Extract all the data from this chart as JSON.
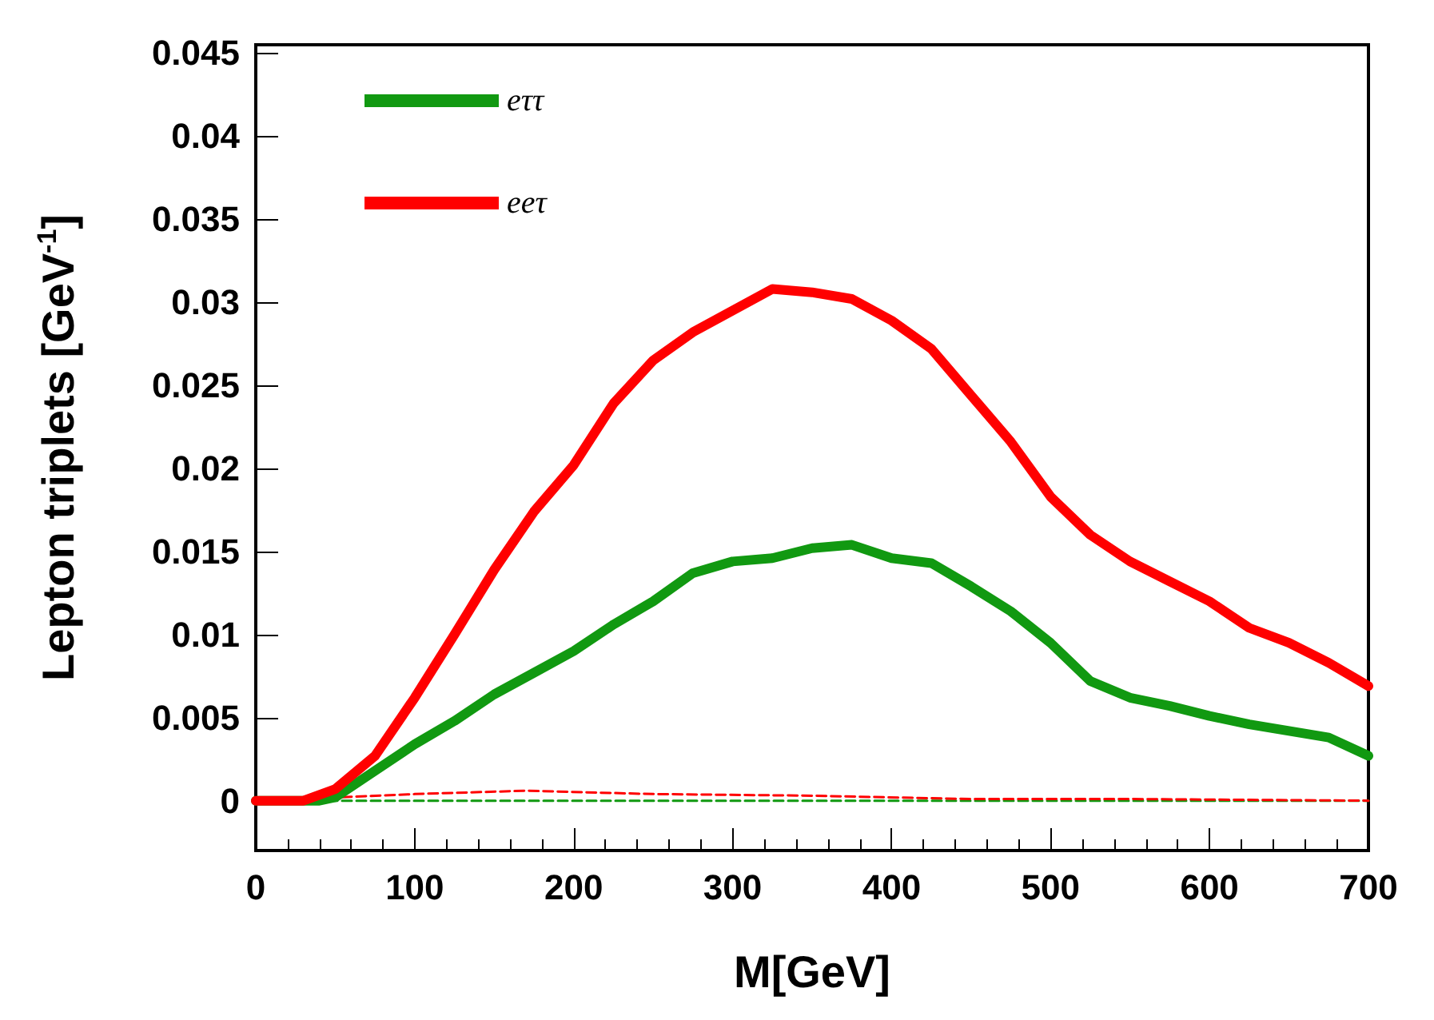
{
  "chart_data": {
    "type": "line",
    "xlabel": "M[GeV]",
    "ylabel": "Lepton triplets [GeV$^{-1}$]",
    "xlim": [
      0,
      700
    ],
    "xticks": [
      0,
      100,
      200,
      300,
      400,
      500,
      600,
      700
    ],
    "ylim": [
      -0.003,
      0.0455
    ],
    "yticks": [
      0,
      0.005,
      0.01,
      0.015,
      0.02,
      0.025,
      0.03,
      0.035,
      0.04,
      0.045
    ],
    "grid": false,
    "legend": "top left",
    "marker": "none",
    "series": [
      {
        "name": "eττ",
        "color": "#119911",
        "line_style": "solid",
        "x": [
          0,
          40,
          50,
          75,
          100,
          125,
          150,
          175,
          200,
          225,
          250,
          275,
          300,
          325,
          350,
          375,
          400,
          425,
          450,
          475,
          500,
          525,
          550,
          575,
          600,
          625,
          650,
          675,
          700
        ],
        "values": [
          0,
          0,
          0.0002,
          0.0018,
          0.0034,
          0.0048,
          0.0064,
          0.0077,
          0.009,
          0.0106,
          0.012,
          0.0137,
          0.0144,
          0.0146,
          0.0152,
          0.0154,
          0.0146,
          0.0143,
          0.0129,
          0.0114,
          0.0095,
          0.0072,
          0.0062,
          0.0057,
          0.0051,
          0.0046,
          0.0042,
          0.0038,
          0.0027
        ]
      },
      {
        "name": "eeτ",
        "color": "#ff0000",
        "line_style": "solid",
        "x": [
          0,
          30,
          50,
          75,
          100,
          125,
          150,
          175,
          200,
          225,
          250,
          275,
          300,
          325,
          350,
          375,
          400,
          425,
          450,
          475,
          500,
          525,
          550,
          575,
          600,
          625,
          650,
          675,
          700
        ],
        "values": [
          0,
          0,
          0.0007,
          0.0027,
          0.0062,
          0.01,
          0.0139,
          0.0174,
          0.0202,
          0.0239,
          0.0265,
          0.0282,
          0.0295,
          0.0308,
          0.0306,
          0.0302,
          0.0289,
          0.0272,
          0.0244,
          0.0216,
          0.0183,
          0.016,
          0.0144,
          0.0132,
          0.012,
          0.0104,
          0.0095,
          0.0083,
          0.0069
        ]
      },
      {
        "color": "#119911",
        "line_style": "dashed",
        "x": [
          0,
          700
        ],
        "values": [
          0,
          0
        ]
      },
      {
        "color": "#ff0000",
        "line_style": "dashed",
        "x": [
          0,
          50,
          100,
          170,
          250,
          350,
          450,
          550,
          700
        ],
        "values": [
          0,
          0.0002,
          0.0004,
          0.0006,
          0.0004,
          0.0003,
          0.0001,
          0.0001,
          0
        ]
      }
    ]
  }
}
